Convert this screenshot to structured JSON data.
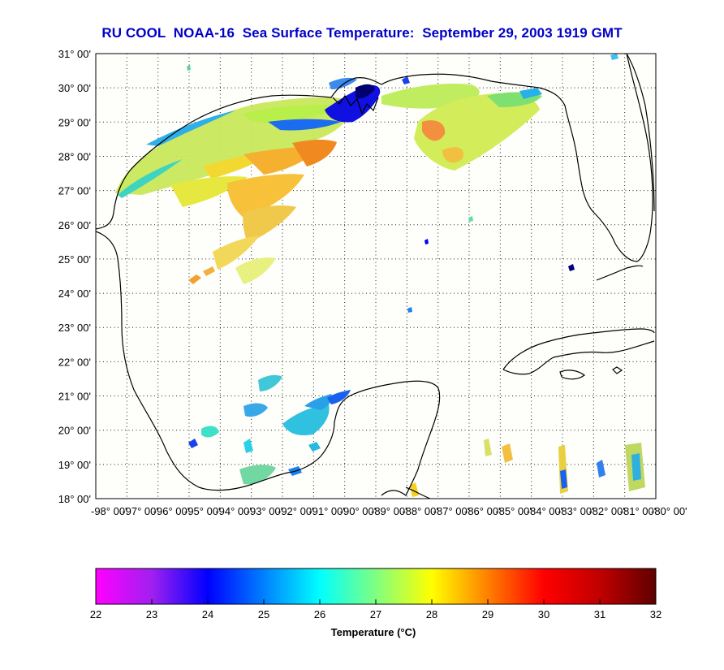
{
  "title": "RU COOL  NOAA-16  Sea Surface Temperature:  September 29, 2003 1919 GMT",
  "title_color": "#0000c8",
  "map": {
    "lat_ticks": [
      "31° 00'",
      "30° 00'",
      "29° 00'",
      "28° 00'",
      "27° 00'",
      "26° 00'",
      "25° 00'",
      "24° 00'",
      "23° 00'",
      "22° 00'",
      "21° 00'",
      "20° 00'",
      "19° 00'",
      "18° 00'"
    ],
    "lon_ticks": [
      "-98° 00'",
      "-97° 00'",
      "-96° 00'",
      "-95° 00'",
      "-94° 00'",
      "-93° 00'",
      "-92° 00'",
      "-91° 00'",
      "-90° 00'",
      "-89° 00'",
      "-88° 00'",
      "-87° 00'",
      "-86° 00'",
      "-85° 00'",
      "-84° 00'",
      "-83° 00'",
      "-82° 00'",
      "-81° 00'",
      "-80° 00'"
    ],
    "lat_range": [
      18,
      31
    ],
    "lon_range": [
      -98,
      -80
    ],
    "grid": "dotted",
    "background": "#fefefa"
  },
  "colorbar": {
    "ticks": [
      "22",
      "23",
      "24",
      "25",
      "26",
      "27",
      "28",
      "29",
      "30",
      "31",
      "32"
    ],
    "range": [
      22,
      32
    ],
    "label": "Temperature (°C)",
    "stops": [
      "#ff00ff",
      "#a020f0",
      "#0000ff",
      "#0080ff",
      "#00ffff",
      "#80ff80",
      "#ffff00",
      "#ff8000",
      "#ff0000",
      "#c00000",
      "#600000"
    ]
  }
}
